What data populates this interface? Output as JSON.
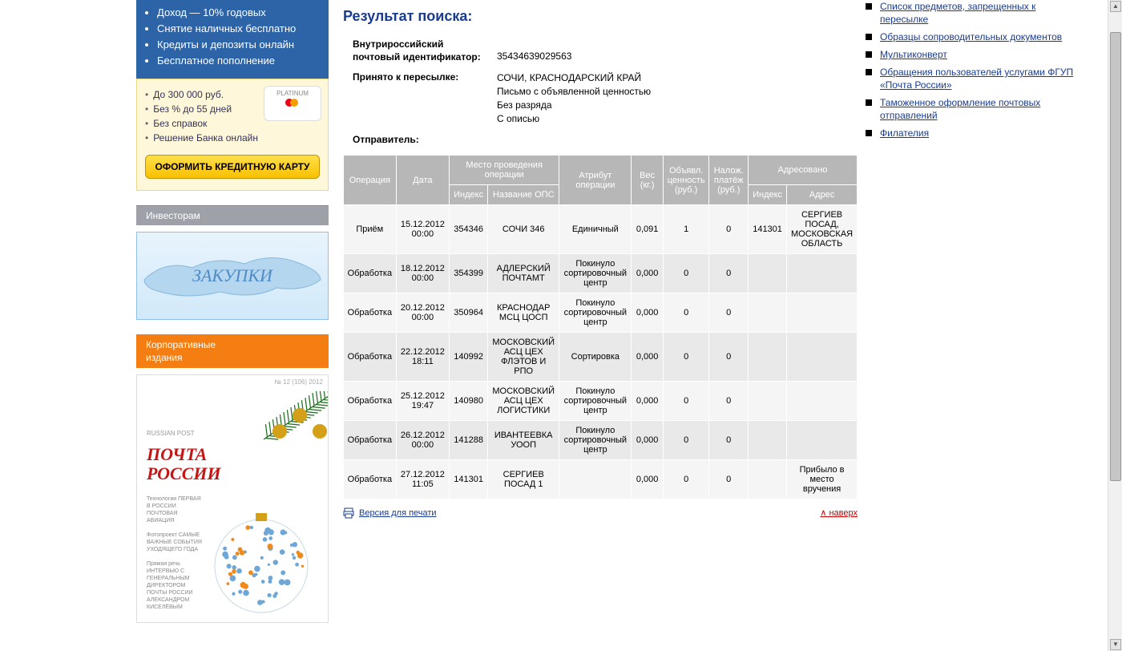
{
  "left_banner": {
    "blue_points": [
      "Доход — 10% годовых",
      "Снятие наличных бесплатно",
      "Кредиты и депозиты онлайн",
      "Бесплатное пополнение"
    ],
    "tinkoff": {
      "lines": [
        "До 300 000 руб.",
        "Без % до 55 дней",
        "Без справок",
        "Решение Банка онлайн"
      ],
      "card_label": "PLATINUM",
      "button": "ОФОРМИТЬ КРЕДИТНУЮ КАРТУ"
    },
    "investors_header": "Инвесторам",
    "zakupki_label": "ЗАКУПКИ",
    "corp_header_line1": "Корпоративные",
    "corp_header_line2": "издания",
    "magazine": {
      "issue": "№ 12 (106) 2012",
      "brand": "RUSSIAN POST",
      "title1": "ПОЧТА",
      "title2": "РОССИИ"
    }
  },
  "content": {
    "heading": "Результат поиска:",
    "id_label1": "Внутрироссийский",
    "id_label2": "почтовый идентификатор:",
    "id_value": "35434639029563",
    "accepted_label": "Принято к пересылке:",
    "accepted_lines": [
      "СОЧИ, КРАСНОДАРСКИЙ КРАЙ",
      "Письмо с объявленной ценностью",
      "Без разряда",
      "С описью"
    ],
    "sender_label": "Отправитель:",
    "headers": {
      "op": "Операция",
      "date": "Дата",
      "place": "Место проведения операции",
      "index": "Индекс",
      "ops_name": "Название ОПС",
      "attr": "Атрибут операции",
      "weight": "Вес (кг.)",
      "decl": "Объявл. ценность (руб.)",
      "cod": "Налож. платёж (руб.)",
      "addressed": "Адресовано",
      "aidx": "Индекс",
      "addr": "Адрес"
    },
    "rows": [
      {
        "op": "Приём",
        "date": "15.12.2012 00:00",
        "idx": "354346",
        "ops": "СОЧИ 346",
        "attr": "Единичный",
        "w": "0,091",
        "decl": "1",
        "cod": "0",
        "aidx": "141301",
        "addr": "СЕРГИЕВ ПОСАД, МОСКОВСКАЯ ОБЛАСТЬ"
      },
      {
        "op": "Обработка",
        "date": "18.12.2012 00:00",
        "idx": "354399",
        "ops": "АДЛЕРСКИЙ ПОЧТАМТ",
        "attr": "Покинуло сортировочный центр",
        "w": "0,000",
        "decl": "0",
        "cod": "0",
        "aidx": "",
        "addr": ""
      },
      {
        "op": "Обработка",
        "date": "20.12.2012 00:00",
        "idx": "350964",
        "ops": "КРАСНОДАР МСЦ ЦОСП",
        "attr": "Покинуло сортировочный центр",
        "w": "0,000",
        "decl": "0",
        "cod": "0",
        "aidx": "",
        "addr": ""
      },
      {
        "op": "Обработка",
        "date": "22.12.2012 18:11",
        "idx": "140992",
        "ops": "МОСКОВСКИЙ АСЦ ЦЕХ ФЛЭТОВ И РПО",
        "attr": "Сортировка",
        "w": "0,000",
        "decl": "0",
        "cod": "0",
        "aidx": "",
        "addr": ""
      },
      {
        "op": "Обработка",
        "date": "25.12.2012 19:47",
        "idx": "140980",
        "ops": "МОСКОВСКИЙ АСЦ ЦЕХ ЛОГИСТИКИ",
        "attr": "Покинуло сортировочный центр",
        "w": "0,000",
        "decl": "0",
        "cod": "0",
        "aidx": "",
        "addr": ""
      },
      {
        "op": "Обработка",
        "date": "26.12.2012 00:00",
        "idx": "141288",
        "ops": "ИВАНТЕЕВКА УООП",
        "attr": "Покинуло сортировочный центр",
        "w": "0,000",
        "decl": "0",
        "cod": "0",
        "aidx": "",
        "addr": ""
      },
      {
        "op": "Обработка",
        "date": "27.12.2012 11:05",
        "idx": "141301",
        "ops": "СЕРГИЕВ ПОСАД 1",
        "attr": "",
        "w": "0,000",
        "decl": "0",
        "cod": "0",
        "aidx": "",
        "addr": "Прибыло в место вручения"
      }
    ],
    "print": "Версия для печати",
    "totop": "наверх"
  },
  "right_menu": [
    "Список предметов, запрещенных к пересылке",
    "Образцы сопроводительных документов",
    "Мультиконверт",
    "Обращения пользователей услугами ФГУП «Почта России»",
    "Таможенное оформление почтовых отправлений",
    "Филателия"
  ]
}
